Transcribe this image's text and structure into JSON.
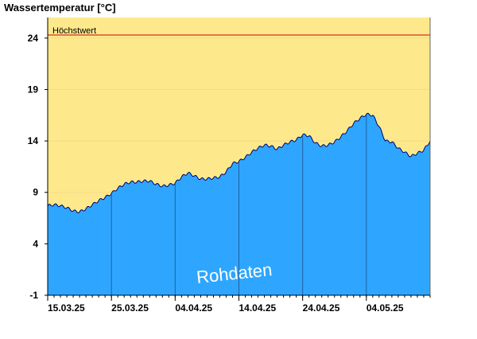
{
  "chart_data": {
    "type": "area",
    "ylabel": "Wassertemperatur [°C]",
    "ylim": [
      -1,
      26
    ],
    "yticks": [
      -1,
      4,
      9,
      14,
      19,
      24
    ],
    "xlim": [
      "2025-03-15",
      "2025-05-14"
    ],
    "xtick_labels": [
      "15.03.25",
      "25.03.25",
      "04.04.25",
      "14.04.25",
      "24.04.25",
      "04.05.25"
    ],
    "xtick_dates": [
      "2025-03-15",
      "2025-03-25",
      "2025-04-04",
      "2025-04-14",
      "2025-04-24",
      "2025-05-04"
    ],
    "hoechstwert": {
      "label": "Höchstwert",
      "value": 24.3
    },
    "watermark": "Rohdaten",
    "colors": {
      "band": "#fde98c",
      "data_fill": "#2ea6ff",
      "data_line": "#00006e",
      "hoechstwert_line": "#cc0000",
      "grid": "#f6d98a",
      "vertical_markers": "#1f5fa0"
    },
    "series": [
      {
        "x": [
          "2025-03-15",
          "2025-03-16",
          "2025-03-17",
          "2025-03-18",
          "2025-03-19",
          "2025-03-20",
          "2025-03-21",
          "2025-03-22",
          "2025-03-23",
          "2025-03-24",
          "2025-03-25",
          "2025-03-26",
          "2025-03-27",
          "2025-03-28",
          "2025-03-29",
          "2025-03-30",
          "2025-03-31",
          "2025-04-01",
          "2025-04-02",
          "2025-04-03",
          "2025-04-04",
          "2025-04-05",
          "2025-04-06",
          "2025-04-07",
          "2025-04-08",
          "2025-04-09",
          "2025-04-10",
          "2025-04-11",
          "2025-04-12",
          "2025-04-13",
          "2025-04-14",
          "2025-04-15",
          "2025-04-16",
          "2025-04-17",
          "2025-04-18",
          "2025-04-19",
          "2025-04-20",
          "2025-04-21",
          "2025-04-22",
          "2025-04-23",
          "2025-04-24",
          "2025-04-25",
          "2025-04-26",
          "2025-04-27",
          "2025-04-28",
          "2025-04-29",
          "2025-04-30",
          "2025-05-01",
          "2025-05-02",
          "2025-05-03",
          "2025-05-04",
          "2025-05-05",
          "2025-05-06",
          "2025-05-07",
          "2025-05-08",
          "2025-05-09",
          "2025-05-10",
          "2025-05-11",
          "2025-05-12",
          "2025-05-13",
          "2025-05-14"
        ],
        "values": [
          7.7,
          7.8,
          7.7,
          7.5,
          7.2,
          7.1,
          7.4,
          7.8,
          8.2,
          8.5,
          8.9,
          9.4,
          9.8,
          10.0,
          10.0,
          10.1,
          10.1,
          9.8,
          9.6,
          9.7,
          9.9,
          10.5,
          10.9,
          10.6,
          10.3,
          10.3,
          10.4,
          10.5,
          11.0,
          11.8,
          12.0,
          12.4,
          12.9,
          13.3,
          13.6,
          13.5,
          13.2,
          13.6,
          13.9,
          14.1,
          14.6,
          14.5,
          13.8,
          13.5,
          13.6,
          13.9,
          14.4,
          15.0,
          15.7,
          16.2,
          16.6,
          16.5,
          15.4,
          14.0,
          13.9,
          13.3,
          12.9,
          12.5,
          12.8,
          13.1,
          14.0
        ]
      }
    ]
  }
}
